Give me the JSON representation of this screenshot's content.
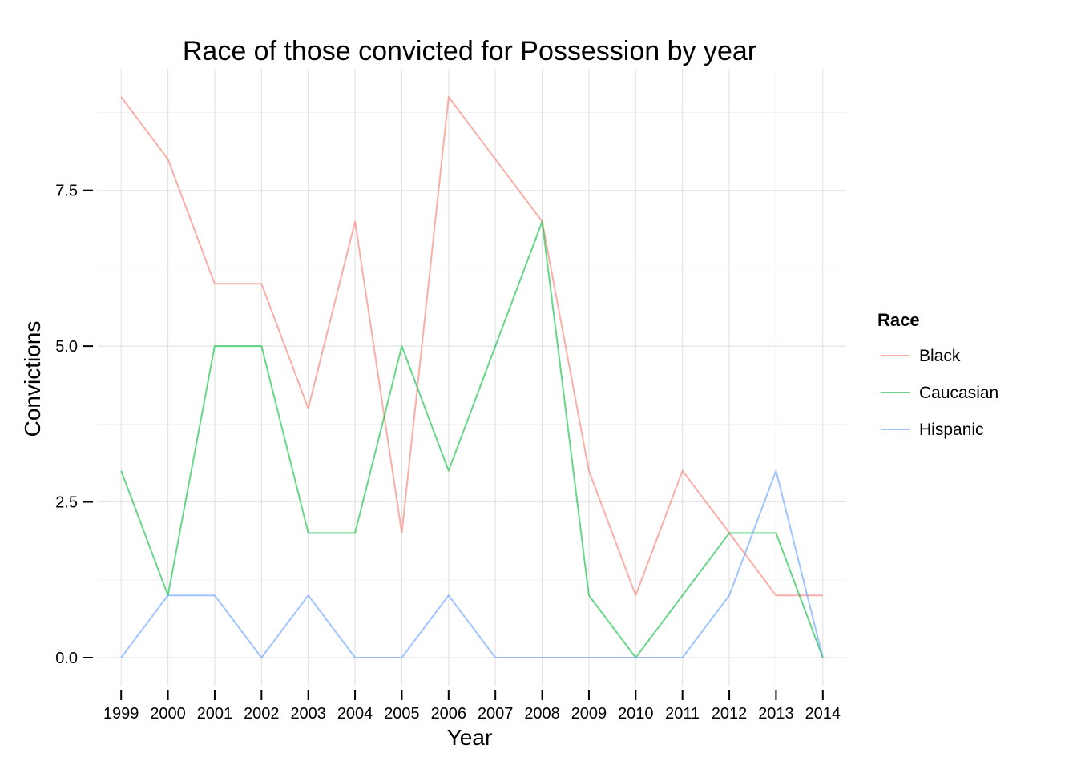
{
  "chart_data": {
    "type": "line",
    "title": "Race of those convicted for Possession by year",
    "xlabel": "Year",
    "ylabel": "Convictions",
    "x": [
      1999,
      2000,
      2001,
      2002,
      2003,
      2004,
      2005,
      2006,
      2007,
      2008,
      2009,
      2010,
      2011,
      2012,
      2013,
      2014
    ],
    "ylim": [
      -0.45,
      9.45
    ],
    "yticks": [
      0.0,
      2.5,
      5.0,
      7.5
    ],
    "ytick_labels": [
      "0.0",
      "2.5",
      "5.0",
      "7.5"
    ],
    "grid": true,
    "legend": {
      "title": "Race",
      "placement": "right"
    },
    "series": [
      {
        "name": "Black",
        "color": "#F8766D",
        "values": [
          9,
          8,
          6,
          6,
          4,
          7,
          2,
          9,
          8,
          7,
          3,
          1,
          3,
          2,
          1,
          1
        ]
      },
      {
        "name": "Caucasian",
        "color": "#00BA38",
        "values": [
          3,
          1,
          5,
          5,
          2,
          2,
          5,
          3,
          5,
          7,
          1,
          0,
          1,
          2,
          2,
          0
        ]
      },
      {
        "name": "Hispanic",
        "color": "#619CFF",
        "values": [
          0,
          1,
          1,
          0,
          1,
          0,
          0,
          1,
          0,
          0,
          0,
          0,
          0,
          1,
          3,
          0
        ]
      }
    ]
  }
}
